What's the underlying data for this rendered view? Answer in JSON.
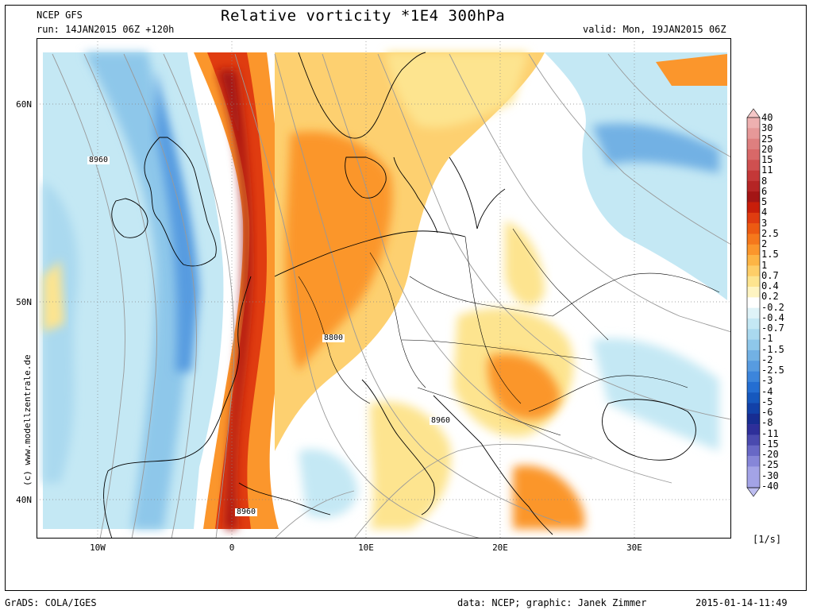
{
  "header": {
    "model": "NCEP GFS",
    "run": "run: 14JAN2015 06Z +120h",
    "title": "Relative vorticity *1E4 300hPa",
    "valid": "valid: Mon, 19JAN2015 06Z"
  },
  "footer": {
    "software": "GrADS: COLA/IGES",
    "credits": "data: NCEP; graphic: Janek Zimmer",
    "timestamp": "2015-01-14-11:49"
  },
  "watermark": "(c)  www.modellzentrale.de",
  "axes": {
    "lat_labels": [
      "60N",
      "50N",
      "40N"
    ],
    "lon_labels": [
      "10W",
      "0",
      "10E",
      "20E",
      "30E"
    ]
  },
  "contour_labels": [
    "8960",
    "8800",
    "8960",
    "8960"
  ],
  "legend": {
    "unit": "[1/s]",
    "levels": [
      "40",
      "30",
      "25",
      "20",
      "15",
      "11",
      "8",
      "6",
      "5",
      "4",
      "3",
      "2.5",
      "2",
      "1.5",
      "1",
      "0.7",
      "0.4",
      "0.2",
      "-0.2",
      "-0.4",
      "-0.7",
      "-1",
      "-1.5",
      "-2",
      "-2.5",
      "-3",
      "-4",
      "-5",
      "-6",
      "-8",
      "-11",
      "-15",
      "-20",
      "-25",
      "-30",
      "-40"
    ],
    "colors": [
      "#f5c8c8",
      "#eeb0b0",
      "#e69898",
      "#de7f7f",
      "#d86868",
      "#cf5050",
      "#c43838",
      "#b52525",
      "#a31515",
      "#c81e0a",
      "#e03c10",
      "#ec5a12",
      "#f5781c",
      "#fb962c",
      "#fdb545",
      "#fece68",
      "#fde48f",
      "#fef4c2",
      "#ffffff",
      "#dff3f8",
      "#c4e8f4",
      "#aad9ef",
      "#8ec7ea",
      "#72b1e4",
      "#579be0",
      "#3c85db",
      "#246ed2",
      "#1658be",
      "#1241a8",
      "#172d92",
      "#2e2f9a",
      "#4a4aaf",
      "#6868c6",
      "#8686d8",
      "#a3a3e6",
      "#bdbdf0"
    ]
  },
  "colors": {
    "red": "#e03c10",
    "orange": "#f5781c",
    "yellow": "#fdd070",
    "light_blue": "#c4e8f4",
    "blue": "#72b1e4"
  }
}
